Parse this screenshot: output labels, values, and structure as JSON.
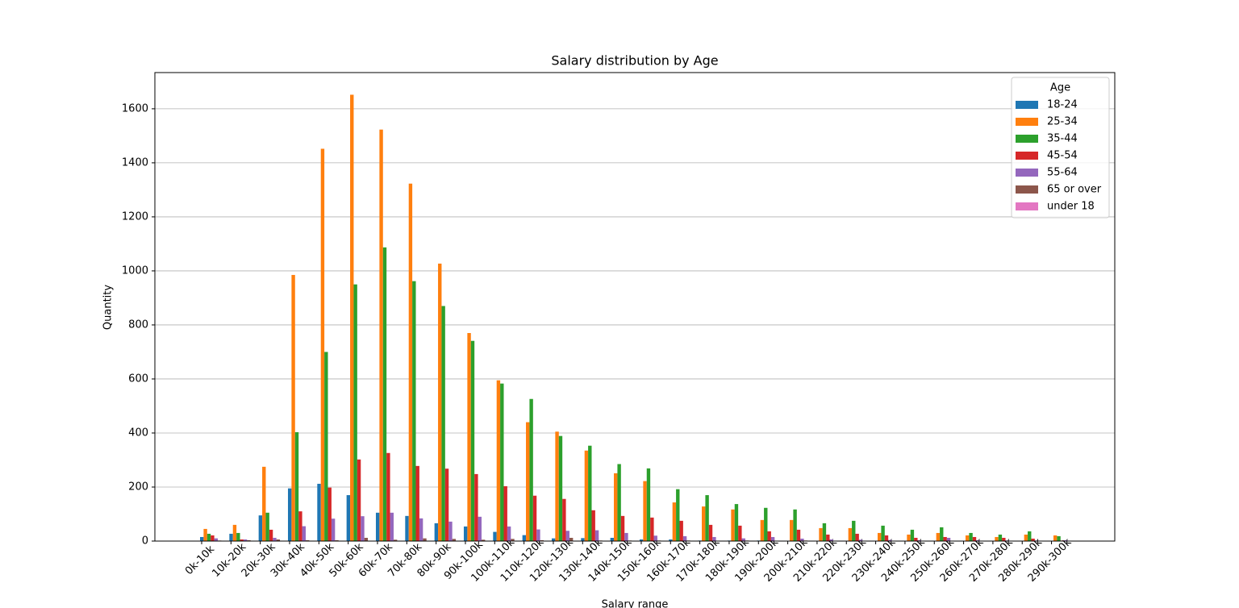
{
  "chart_data": {
    "type": "bar",
    "title": "Salary distribution by Age",
    "x_label": "Salary range",
    "y_label": "Quantity",
    "categories": [
      "0k-10k",
      "10k-20k",
      "20k-30k",
      "30k-40k",
      "40k-50k",
      "50k-60k",
      "60k-70k",
      "70k-80k",
      "80k-90k",
      "90k-100k",
      "100k-110k",
      "110k-120k",
      "120k-130k",
      "130k-140k",
      "140k-150k",
      "150k-160k",
      "160k-170k",
      "170k-180k",
      "180k-190k",
      "190k-200k",
      "200k-210k",
      "210k-220k",
      "220k-230k",
      "230k-240k",
      "240k-250k",
      "250k-260k",
      "260k-270k",
      "270k-280k",
      "280k-290k",
      "290k-300k"
    ],
    "legend_title": "Age",
    "legend": "upper right",
    "grid": true,
    "ylim": [
      0,
      1734
    ],
    "yticks": [
      0,
      200,
      400,
      600,
      800,
      1000,
      1200,
      1400,
      1600
    ],
    "series": [
      {
        "name": "18-24",
        "color": "#1f77b4",
        "values": [
          15,
          27,
          95,
          195,
          212,
          170,
          105,
          93,
          66,
          54,
          34,
          22,
          10,
          11,
          12,
          6,
          6,
          2,
          2,
          2,
          1,
          1,
          1,
          1,
          1,
          1,
          1,
          1,
          1,
          1
        ]
      },
      {
        "name": "25-34",
        "color": "#ff7f0e",
        "values": [
          45,
          60,
          275,
          985,
          1452,
          1652,
          1523,
          1323,
          1027,
          770,
          595,
          440,
          405,
          335,
          251,
          222,
          143,
          128,
          117,
          78,
          78,
          48,
          48,
          30,
          24,
          30,
          21,
          15,
          24,
          21
        ]
      },
      {
        "name": "35-44",
        "color": "#2ca02c",
        "values": [
          27,
          30,
          105,
          403,
          700,
          950,
          1087,
          962,
          870,
          741,
          583,
          526,
          389,
          353,
          285,
          269,
          192,
          170,
          137,
          123,
          117,
          66,
          75,
          57,
          42,
          51,
          30,
          24,
          36,
          18
        ]
      },
      {
        "name": "45-54",
        "color": "#d62728",
        "values": [
          21,
          6,
          42,
          110,
          198,
          302,
          326,
          278,
          268,
          248,
          203,
          168,
          156,
          114,
          93,
          87,
          75,
          60,
          57,
          36,
          42,
          24,
          27,
          21,
          12,
          15,
          15,
          12,
          9,
          2
        ]
      },
      {
        "name": "55-64",
        "color": "#9467bd",
        "values": [
          10,
          6,
          12,
          55,
          83,
          92,
          105,
          84,
          72,
          90,
          54,
          43,
          38,
          40,
          30,
          20,
          18,
          15,
          10,
          15,
          9,
          6,
          5,
          4,
          3,
          12,
          3,
          2,
          2,
          3
        ]
      },
      {
        "name": "65 or over",
        "color": "#8c564b",
        "values": [
          2,
          3,
          6,
          3,
          3,
          12,
          5,
          10,
          8,
          5,
          8,
          3,
          12,
          2,
          2,
          2,
          2,
          1,
          2,
          1,
          2,
          1,
          1,
          1,
          1,
          1,
          1,
          1,
          1,
          1
        ]
      },
      {
        "name": "under 18",
        "color": "#e377c2",
        "values": [
          1,
          0,
          0,
          0,
          0,
          0,
          0,
          0,
          0,
          0,
          0,
          0,
          0,
          0,
          0,
          0,
          0,
          0,
          0,
          0,
          0,
          0,
          0,
          0,
          0,
          0,
          0,
          0,
          0,
          0
        ]
      }
    ]
  }
}
